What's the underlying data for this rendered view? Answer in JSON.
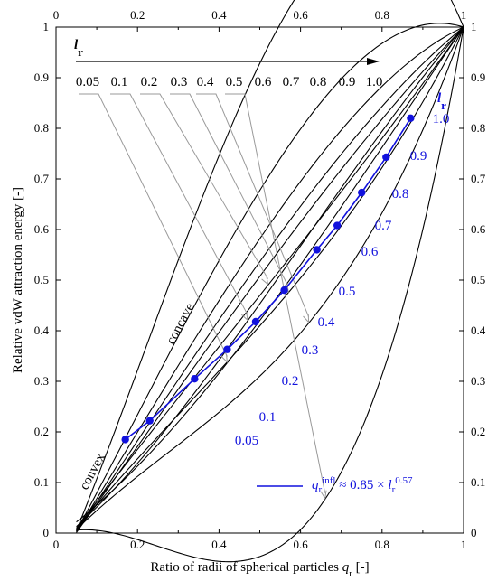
{
  "chart_data": {
    "type": "line",
    "xlabel": "Ratio of radii of spherical particles ",
    "xlabel_symbol": "q",
    "xlabel_sub": "r",
    "xlabel_unit": " [-]",
    "ylabel": "Relative vdW attraction energy [-]",
    "xlim": [
      0,
      1
    ],
    "ylim": [
      0,
      1
    ],
    "x_ticks": [
      "0",
      "0.2",
      "0.4",
      "0.6",
      "0.8",
      "1"
    ],
    "y_ticks": [
      "0",
      "0.1",
      "0.2",
      "0.3",
      "0.4",
      "0.5",
      "0.6",
      "0.7",
      "0.8",
      "0.9",
      "1"
    ],
    "lr_symbol": "l",
    "lr_sub": "r",
    "top_lr_labels": [
      "0.05",
      "0.1",
      "0.2",
      "0.3",
      "0.4",
      "0.5",
      "0.6",
      "0.7",
      "0.8",
      "0.9",
      "1.0"
    ],
    "curve_lr_labels": [
      "1.0",
      "0.9",
      "0.8",
      "0.7",
      "0.6",
      "0.5",
      "0.4",
      "0.3",
      "0.2",
      "0.1",
      "0.05"
    ],
    "concave_label": "concave",
    "convex_label": "convex",
    "series_lr": [
      0.05,
      0.1,
      0.2,
      0.3,
      0.4,
      0.5,
      0.6,
      0.7,
      0.8,
      0.9,
      1.0
    ],
    "series_start_y": [
      0.022,
      0.013,
      0.01,
      0.008,
      0.007,
      0.006,
      0.005,
      0.004,
      0.003,
      0.002,
      0.001
    ],
    "inflection_points": {
      "x": [
        0.17,
        0.23,
        0.34,
        0.42,
        0.49,
        0.56,
        0.64,
        0.69,
        0.75,
        0.81,
        0.87
      ],
      "y": [
        0.185,
        0.222,
        0.305,
        0.363,
        0.418,
        0.48,
        0.56,
        0.608,
        0.673,
        0.743,
        0.82
      ]
    },
    "legend": {
      "symbol": "q",
      "sub": "r",
      "sup": "infl",
      "formula": " ≈ 0.85 × ",
      "lr_symbol": "l",
      "lr_sub": "r",
      "exponent": "0.57"
    },
    "colors": {
      "curves": "#000000",
      "inflection": "#1111dd",
      "pointer_lines": "#999999"
    }
  }
}
